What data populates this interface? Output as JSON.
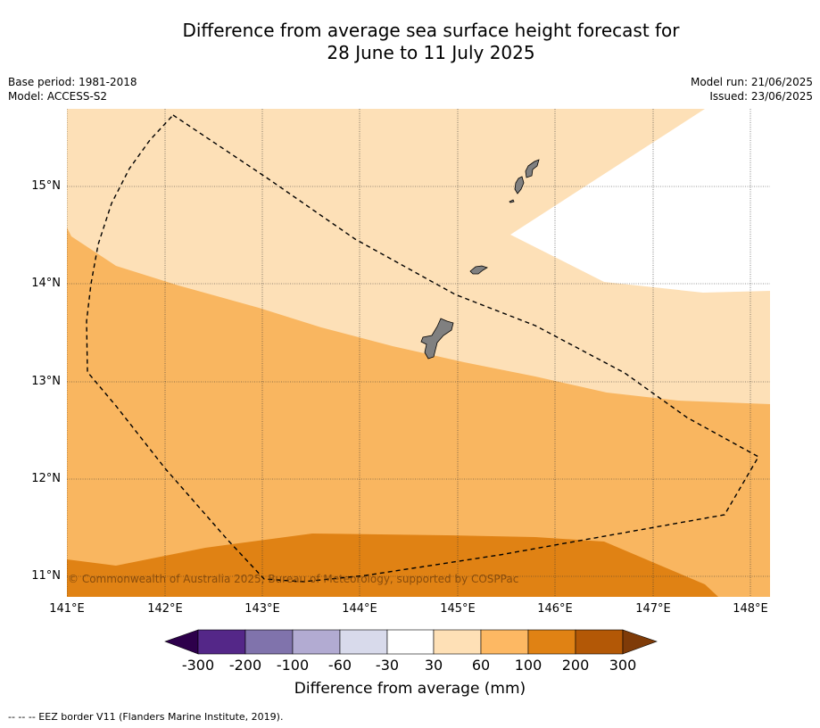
{
  "title": {
    "line1": "Difference from average sea surface height forecast for",
    "line2": "28 June to 11 July 2025"
  },
  "meta_left": {
    "base_period": "Base period: 1981-2018",
    "model": "Model: ACCESS-S2"
  },
  "meta_right": {
    "model_run": "Model run: 21/06/2025",
    "issued": "Issued: 23/06/2025"
  },
  "map": {
    "lon_range": [
      141.0,
      148.2
    ],
    "lat_range": [
      10.8,
      15.8
    ],
    "lat_labels": [
      "15°N",
      "14°N",
      "13°N",
      "12°N",
      "11°N"
    ],
    "lon_labels": [
      "141°E",
      "142°E",
      "143°E",
      "144°E",
      "145°E",
      "146°E",
      "147°E",
      "148°E"
    ],
    "credit": "© Commonwealth of Australia 2025, Bureau of Meteorology, supported by COSPPac",
    "colors": {
      "band_30_60": "#fde0b7",
      "band_60_100": "#f9b660",
      "band_100_200": "#e08214",
      "land": "#808080",
      "white": "#ffffff"
    }
  },
  "colorbar": {
    "ticks": [
      "-300",
      "-200",
      "-100",
      "-60",
      "-30",
      "30",
      "60",
      "100",
      "200",
      "300"
    ],
    "colors": [
      "#2d004b",
      "#542788",
      "#8073ac",
      "#b2abd2",
      "#d8daeb",
      "#ffffff",
      "#fee0b6",
      "#fdb863",
      "#e08214",
      "#b35806",
      "#7f3b08"
    ],
    "label": "Difference from average (mm)"
  },
  "footnote": "--  --  -- EEZ border V11 (Flanders Marine Institute, 2019)."
}
